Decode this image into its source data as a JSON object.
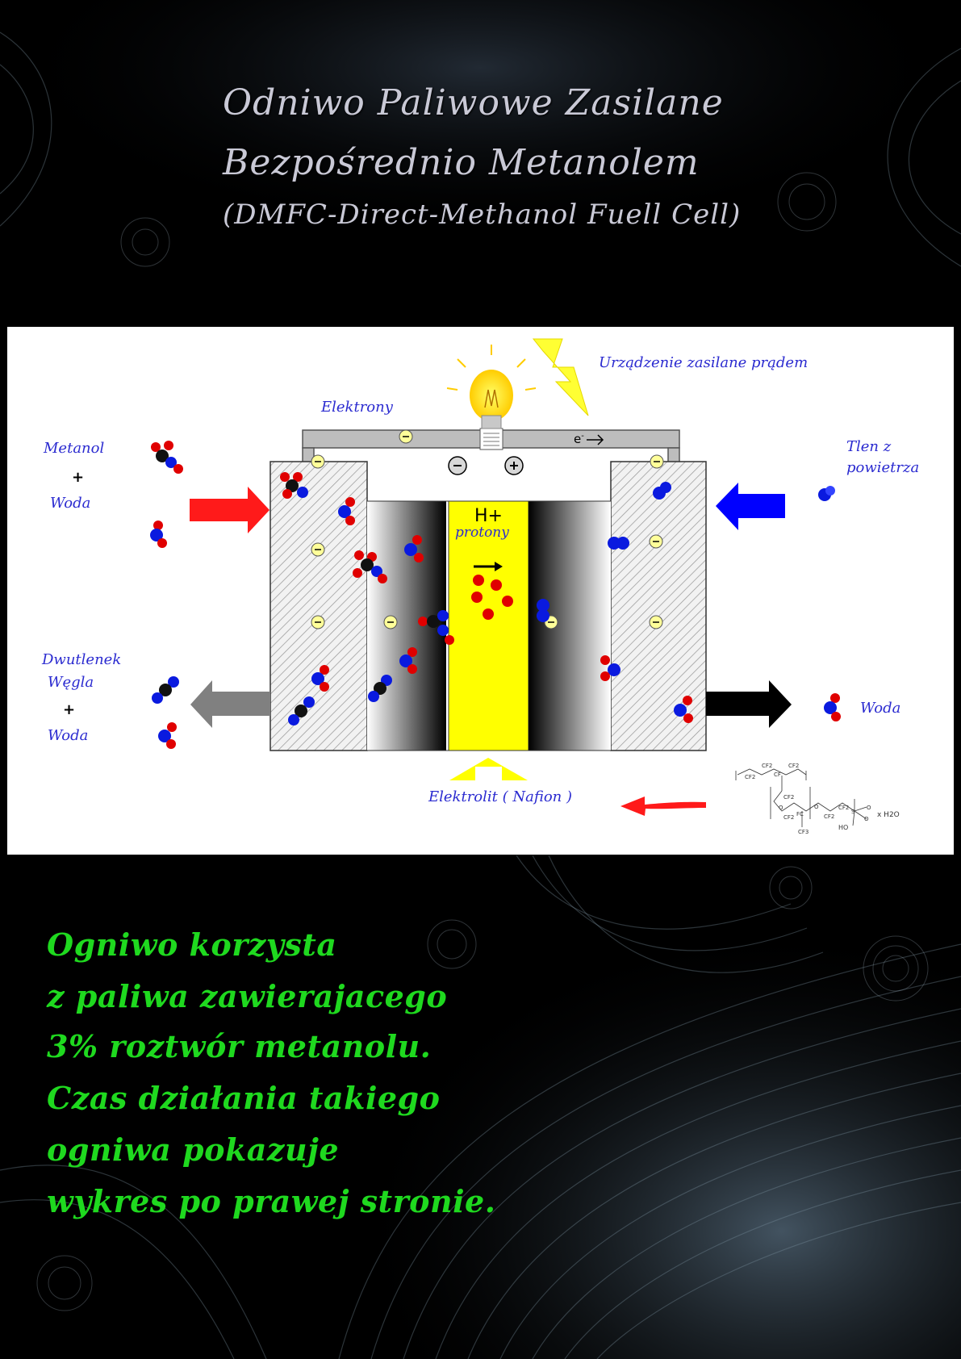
{
  "title": {
    "line1": "Odniwo Paliwowe Zasilane",
    "line2": "Bezpośrednio Metanolem",
    "line3": "(DMFC-Direct-Methanol Fuell Cell)"
  },
  "diagram": {
    "device_label": "Urządzenie zasilane prądem",
    "electrons_label": "Elektrony",
    "electron_symbol": "e",
    "minus_sign": "-",
    "plus_sign": "+",
    "minus_terminal": "-",
    "plus_terminal": "+",
    "proton_symbol": "H+",
    "protons_label": "protony",
    "methanol_label": "Metanol",
    "plus_between": "+",
    "water_label_left": "Woda",
    "oxygen_label_line1": "Tlen z",
    "oxygen_label_line2": "powietrza",
    "co2_label_line1": "Dwutlenek",
    "co2_label_line2": "Węgla",
    "plus_between_2": "+",
    "water_label_bottom_left": "Woda",
    "water_label_right": "Woda",
    "electrolyte_label": "Elektrolit ( Nafion )",
    "formula_water": "x H2O",
    "formula_ho": "HO",
    "formula_groups": [
      "CF2",
      "CF2",
      "CF",
      "CF2",
      "CF2",
      "O",
      "CF2",
      "FC",
      "O",
      "CF2",
      "CF2",
      "S",
      "O",
      "O",
      "CF3"
    ],
    "colors": {
      "label_blue": "#2b2bd0",
      "anode_arrow": "#ff1a1a",
      "cathode_arrow": "#0000ff",
      "exhaust_left": "#808080",
      "exhaust_right": "#000000",
      "membrane": "#ffff00",
      "carbon": "#111111",
      "oxygen_atom": "#e00000",
      "hydrogen_atom": "#0a1adf"
    }
  },
  "body_text": {
    "line1": "Ogniwo korzysta",
    "line2": "z paliwa zawierajacego",
    "line3": "3% roztwór metanolu.",
    "line4": "Czas działania takiego",
    "line5": "ogniwa pokazuje",
    "line6": "wykres po prawej stronie."
  }
}
